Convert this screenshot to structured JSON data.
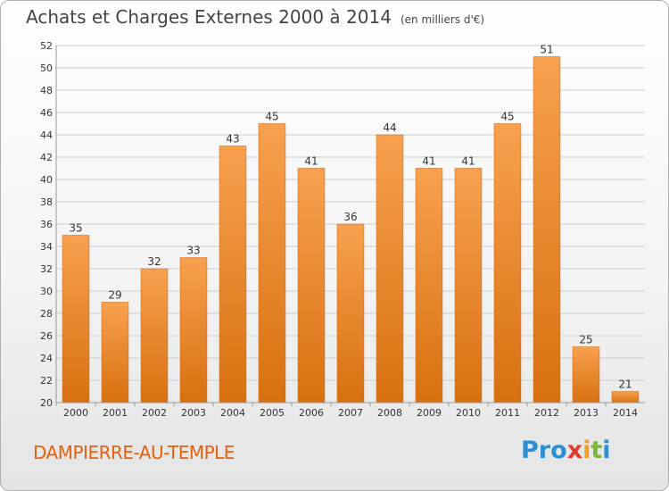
{
  "header": {
    "title": "Achats et Charges Externes 2000 à 2014",
    "unit": "(en milliers d'€)"
  },
  "footer": {
    "place": "DAMPIERRE-AU-TEMPLE",
    "logo": "Proxiti",
    "logo_letters": [
      {
        "ch": "P",
        "color": "#2a8fd4"
      },
      {
        "ch": "r",
        "color": "#2a8fd4"
      },
      {
        "ch": "o",
        "color": "#2a8fd4"
      },
      {
        "ch": "x",
        "color": "#e33b2b"
      },
      {
        "ch": "i",
        "color": "#f0a020"
      },
      {
        "ch": "t",
        "color": "#7ab830"
      },
      {
        "ch": "i",
        "color": "#2a8fd4"
      }
    ]
  },
  "colors": {
    "bar_light": "#f8a14f",
    "bar_dark": "#d8700f",
    "grid": "#cccccc",
    "axis_text": "#333333"
  },
  "chart_data": {
    "type": "bar",
    "categories": [
      "2000",
      "2001",
      "2002",
      "2003",
      "2004",
      "2005",
      "2006",
      "2007",
      "2008",
      "2009",
      "2010",
      "2011",
      "2012",
      "2013",
      "2014"
    ],
    "values": [
      35,
      29,
      32,
      33,
      43,
      45,
      41,
      36,
      44,
      41,
      41,
      45,
      51,
      25,
      21
    ],
    "ylim": [
      20,
      52
    ],
    "yticks": [
      20,
      22,
      24,
      26,
      28,
      30,
      32,
      34,
      36,
      38,
      40,
      42,
      44,
      46,
      48,
      50,
      52
    ],
    "grid": true,
    "data_labels": true
  }
}
